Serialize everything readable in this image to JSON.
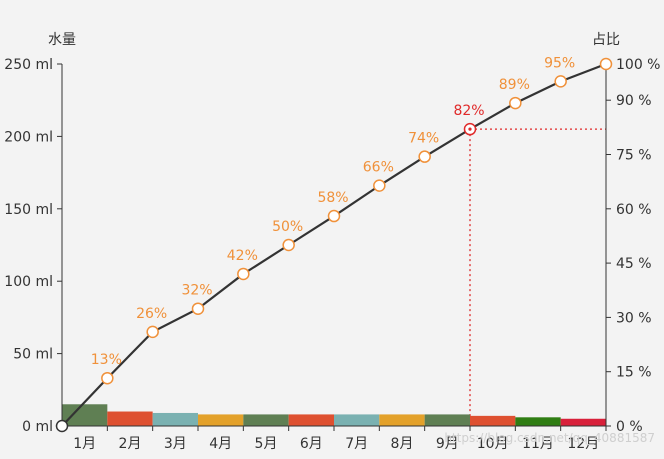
{
  "chart_data": {
    "type": "bar+line",
    "title": "",
    "categories": [
      "1月",
      "2月",
      "3月",
      "4月",
      "5月",
      "6月",
      "7月",
      "8月",
      "9月",
      "10月",
      "11月",
      "12月"
    ],
    "y_left": {
      "label": "水量",
      "unit": "ml",
      "range": [
        0,
        250
      ],
      "ticks": [
        0,
        50,
        100,
        150,
        200,
        250
      ],
      "tick_labels": [
        "0 ml",
        "50 ml",
        "100 ml",
        "150 ml",
        "200 ml",
        "250 ml"
      ]
    },
    "y_right": {
      "label": "占比",
      "unit": "%",
      "range": [
        0,
        100
      ],
      "ticks": [
        0,
        15,
        30,
        45,
        60,
        75,
        90,
        100
      ],
      "tick_labels": [
        "0 %",
        "15 %",
        "30 %",
        "45 %",
        "60 %",
        "75 %",
        "90 %",
        "100 %"
      ]
    },
    "bars": {
      "axis": "left",
      "values": [
        15,
        10,
        9,
        8,
        8,
        8,
        8,
        8,
        8,
        7,
        6,
        5
      ],
      "colors": [
        "#5f7f53",
        "#de5030",
        "#7ab1b1",
        "#e3a12a",
        "#5f7f53",
        "#de5030",
        "#7ab1b1",
        "#e3a12a",
        "#5f7f53",
        "#de5030",
        "#2f7d13",
        "#d8203a"
      ]
    },
    "line": {
      "axis": "left",
      "x": [
        0,
        1,
        2,
        3,
        4,
        5,
        6,
        7,
        8,
        9,
        10,
        11,
        12
      ],
      "values": [
        0,
        33,
        65,
        81,
        105,
        125,
        145,
        166,
        186,
        205,
        223,
        238,
        250
      ],
      "labels": [
        "",
        "13%",
        "26%",
        "32%",
        "42%",
        "50%",
        "58%",
        "66%",
        "74%",
        "82%",
        "89%",
        "95%",
        ""
      ],
      "highlight_index": 9,
      "line_color": "#333333",
      "marker_color": "#f0913a",
      "label_color": "#f0913a",
      "highlight_color": "#e02a2a"
    },
    "reference": {
      "category_index": 9,
      "value_left": 205,
      "value_right": 82,
      "color": "#e02a2a",
      "style": "dotted"
    },
    "watermark": "https://blog.csdn.net/qq_40881587"
  }
}
